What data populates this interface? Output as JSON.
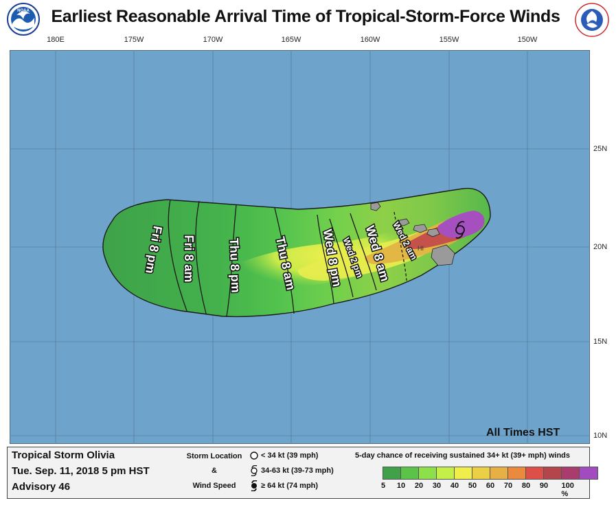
{
  "title": "Earliest Reasonable Arrival Time of Tropical-Storm-Force Winds",
  "logos": {
    "left": "noaa-logo",
    "right": "nws-logo"
  },
  "map": {
    "lon_labels": [
      "180E",
      "175W",
      "170W",
      "165W",
      "160W",
      "155W",
      "150W"
    ],
    "lat_labels": [
      "25N",
      "20N",
      "15N",
      "10N"
    ],
    "time_labels": [
      "Fri 8 pm",
      "Fri 8 am",
      "Thu 8 pm",
      "Thu 8 am",
      "Wed 8 pm",
      "Wed 2 pm",
      "Wed 8 am",
      "Wed 2 am"
    ],
    "island_label": "HI",
    "storm_symbol": "34-63 kt",
    "colors": {
      "ocean": "#6ea3cc",
      "swath_low": "#39a84c",
      "swath_mid": "#7ed84e",
      "swath_high": "#e6ea4e",
      "swath_peak": "#a64fbf"
    }
  },
  "all_times": "All Times HST",
  "legend": {
    "storm_name": "Tropical Storm Olivia",
    "date": "Tue. Sep. 11, 2018  5 pm HST",
    "advisory": "Advisory 46",
    "location_title_1": "Storm Location",
    "location_title_2": "&",
    "location_title_3": "Wind Speed",
    "symbols": [
      {
        "icon": "open-circle-icon",
        "label": "< 34 kt (39 mph)"
      },
      {
        "icon": "tropical-storm-icon",
        "label": "34-63 kt (39-73 mph)"
      },
      {
        "icon": "hurricane-icon",
        "label": "≥ 64 kt (74 mph)"
      }
    ],
    "prob_title": "5-day chance of receiving sustained 34+ kt (39+ mph) winds",
    "colorbar": [
      "#41a04a",
      "#5cc34a",
      "#8ee04a",
      "#c4ef48",
      "#efee4a",
      "#ebd046",
      "#e6b044",
      "#eb8a3f",
      "#dd4f48",
      "#b3464a",
      "#a83c6d",
      "#a24bbf"
    ],
    "ticks": [
      "5",
      "10",
      "20",
      "30",
      "40",
      "50",
      "60",
      "70",
      "80",
      "90",
      "100 %"
    ]
  }
}
